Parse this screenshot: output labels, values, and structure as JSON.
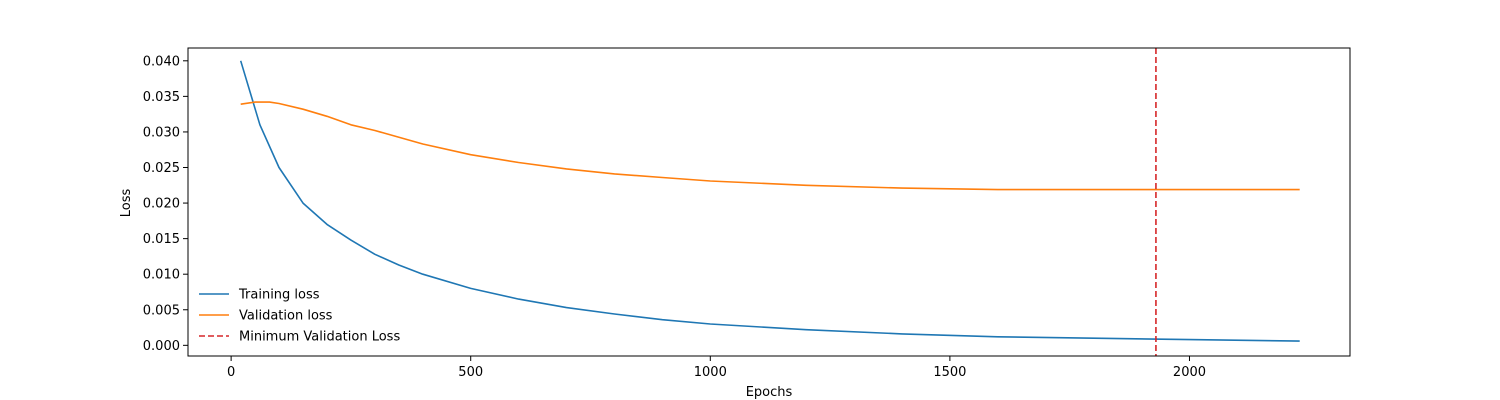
{
  "chart_data": {
    "type": "line",
    "title": "",
    "xlabel": "Epochs",
    "ylabel": "Loss",
    "xlim": [
      -90,
      2335
    ],
    "ylim": [
      -0.0015,
      0.0418
    ],
    "xticks": [
      0,
      500,
      1000,
      1500,
      2000
    ],
    "yticks": [
      0.0,
      0.005,
      0.01,
      0.015,
      0.02,
      0.025,
      0.03,
      0.035,
      0.04
    ],
    "xtick_labels": [
      "0",
      "500",
      "1000",
      "1500",
      "2000"
    ],
    "ytick_labels": [
      "0.000",
      "0.005",
      "0.010",
      "0.015",
      "0.020",
      "0.025",
      "0.030",
      "0.035",
      "0.040"
    ],
    "grid": false,
    "legend_position": "lower-left",
    "series": [
      {
        "name": "Training loss",
        "color": "#1f77b4",
        "style": "solid",
        "x": [
          20,
          60,
          100,
          150,
          200,
          250,
          300,
          350,
          400,
          500,
          600,
          700,
          800,
          900,
          1000,
          1200,
          1400,
          1600,
          1800,
          2000,
          2230
        ],
        "y": [
          0.04,
          0.031,
          0.025,
          0.02,
          0.017,
          0.0148,
          0.0128,
          0.0113,
          0.01,
          0.008,
          0.0065,
          0.0053,
          0.0044,
          0.0036,
          0.003,
          0.0022,
          0.0016,
          0.0012,
          0.001,
          0.0008,
          0.0006
        ]
      },
      {
        "name": "Validation loss",
        "color": "#ff7f0e",
        "style": "solid",
        "x": [
          20,
          50,
          80,
          100,
          150,
          200,
          250,
          300,
          400,
          500,
          600,
          700,
          800,
          900,
          1000,
          1200,
          1400,
          1600,
          1800,
          1930,
          2100,
          2230
        ],
        "y": [
          0.0339,
          0.0342,
          0.0342,
          0.034,
          0.0332,
          0.0322,
          0.031,
          0.0302,
          0.0283,
          0.0268,
          0.0257,
          0.0248,
          0.0241,
          0.0236,
          0.0231,
          0.0225,
          0.0221,
          0.0219,
          0.0219,
          0.0219,
          0.0219,
          0.0219
        ]
      }
    ],
    "vlines": [
      {
        "name": "Minimum Validation Loss",
        "x": 1930,
        "color": "#d62728",
        "style": "dashed"
      }
    ]
  }
}
